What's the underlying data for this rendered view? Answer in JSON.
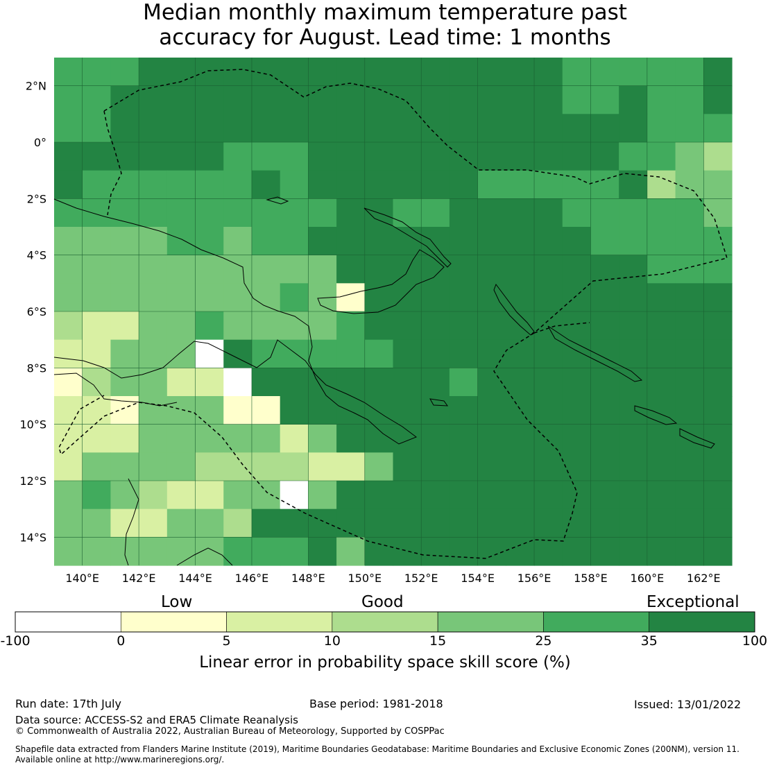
{
  "title_line1": "Median monthly maximum temperature past",
  "title_line2": "accuracy for August. Lead time: 1 months",
  "map": {
    "lon_ticks": [
      "140°E",
      "142°E",
      "144°E",
      "146°E",
      "148°E",
      "150°E",
      "152°E",
      "154°E",
      "156°E",
      "158°E",
      "160°E",
      "162°E"
    ],
    "lat_ticks": [
      "2°N",
      "0°",
      "2°S",
      "4°S",
      "6°S",
      "8°S",
      "10°S",
      "12°S",
      "14°S"
    ],
    "lon_range": [
      139.0,
      163.0
    ],
    "lat_range": [
      -15.0,
      3.0
    ],
    "colors": {
      "c0": "#ffffff",
      "c1": "#ffffcc",
      "c2": "#d9f0a3",
      "c3": "#addd8e",
      "c4": "#78c679",
      "c5": "#41ab5d",
      "c6": "#238443"
    }
  },
  "colorbar": {
    "categories": [
      "Low",
      "Good",
      "Exceptional"
    ],
    "ticks": [
      "-100",
      "0",
      "5",
      "10",
      "15",
      "25",
      "35",
      "100"
    ],
    "colors": [
      "#ffffff",
      "#ffffcc",
      "#d9f0a3",
      "#addd8e",
      "#78c679",
      "#41ab5d",
      "#238443"
    ],
    "label": "Linear error in probability space skill score (%)"
  },
  "footer": {
    "run_date": "Run date: 17th July",
    "base_period": "Base period: 1981-2018",
    "issued": "Issued: 13/01/2022",
    "data_source": "Data source: ACCESS-S2 and ERA5 Climate Reanalysis",
    "copyright": "© Commonwealth of Australia 2022, Australian Bureau of Meteorology, Supported by COSPPac",
    "shapefile_line1": "Shapefile data extracted from Flanders Marine Institute (2019), Maritime Boundaries Geodatabase: Maritime Boundaries and Exclusive Economic Zones (200NM), version 11.",
    "shapefile_line2": "Available online at http://www.marineregions.org/."
  }
}
